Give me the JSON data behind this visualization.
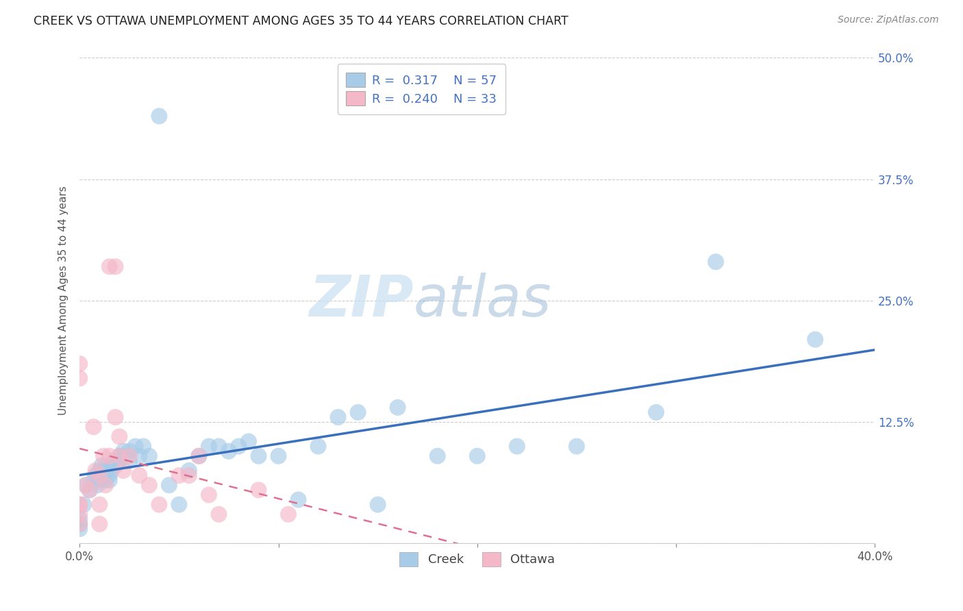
{
  "title": "CREEK VS OTTAWA UNEMPLOYMENT AMONG AGES 35 TO 44 YEARS CORRELATION CHART",
  "source": "Source: ZipAtlas.com",
  "ylabel": "Unemployment Among Ages 35 to 44 years",
  "xlim": [
    0.0,
    0.4
  ],
  "ylim": [
    0.0,
    0.5
  ],
  "xticks": [
    0.0,
    0.1,
    0.2,
    0.3,
    0.4
  ],
  "yticks": [
    0.0,
    0.125,
    0.25,
    0.375,
    0.5
  ],
  "xticklabels": [
    "0.0%",
    "",
    "",
    "",
    "40.0%"
  ],
  "yticklabels_right": [
    "",
    "12.5%",
    "25.0%",
    "37.5%",
    "50.0%"
  ],
  "creek_color": "#a8cce8",
  "ottawa_color": "#f4b8c8",
  "creek_line_color": "#3a6fbc",
  "ottawa_line_color": "#e07090",
  "background_color": "#ffffff",
  "watermark_zip": "ZIP",
  "watermark_atlas": "atlas",
  "legend_creek_R": "0.317",
  "legend_creek_N": "57",
  "legend_ottawa_R": "0.240",
  "legend_ottawa_N": "33",
  "creek_scatter_x": [
    0.0,
    0.0,
    0.0,
    0.002,
    0.003,
    0.005,
    0.007,
    0.008,
    0.009,
    0.01,
    0.01,
    0.01,
    0.011,
    0.012,
    0.013,
    0.013,
    0.014,
    0.015,
    0.015,
    0.016,
    0.017,
    0.018,
    0.02,
    0.02,
    0.021,
    0.022,
    0.025,
    0.025,
    0.028,
    0.03,
    0.032,
    0.035,
    0.04,
    0.045,
    0.05,
    0.055,
    0.06,
    0.065,
    0.07,
    0.075,
    0.08,
    0.085,
    0.09,
    0.1,
    0.11,
    0.12,
    0.13,
    0.14,
    0.15,
    0.16,
    0.18,
    0.2,
    0.22,
    0.25,
    0.29,
    0.32,
    0.37
  ],
  "creek_scatter_y": [
    0.015,
    0.02,
    0.025,
    0.04,
    0.06,
    0.055,
    0.065,
    0.07,
    0.06,
    0.065,
    0.07,
    0.075,
    0.08,
    0.07,
    0.065,
    0.075,
    0.08,
    0.07,
    0.065,
    0.075,
    0.085,
    0.08,
    0.09,
    0.085,
    0.09,
    0.095,
    0.095,
    0.085,
    0.1,
    0.09,
    0.1,
    0.09,
    0.44,
    0.06,
    0.04,
    0.075,
    0.09,
    0.1,
    0.1,
    0.095,
    0.1,
    0.105,
    0.09,
    0.09,
    0.045,
    0.1,
    0.13,
    0.135,
    0.04,
    0.14,
    0.09,
    0.09,
    0.1,
    0.1,
    0.135,
    0.29,
    0.21
  ],
  "ottawa_scatter_x": [
    0.0,
    0.0,
    0.0,
    0.0,
    0.0,
    0.0,
    0.003,
    0.005,
    0.007,
    0.008,
    0.01,
    0.01,
    0.01,
    0.012,
    0.013,
    0.015,
    0.015,
    0.018,
    0.018,
    0.02,
    0.02,
    0.022,
    0.025,
    0.03,
    0.035,
    0.04,
    0.05,
    0.055,
    0.06,
    0.065,
    0.07,
    0.09,
    0.105
  ],
  "ottawa_scatter_y": [
    0.185,
    0.17,
    0.04,
    0.03,
    0.04,
    0.02,
    0.06,
    0.055,
    0.12,
    0.075,
    0.07,
    0.04,
    0.02,
    0.09,
    0.06,
    0.09,
    0.285,
    0.285,
    0.13,
    0.09,
    0.11,
    0.075,
    0.09,
    0.07,
    0.06,
    0.04,
    0.07,
    0.07,
    0.09,
    0.05,
    0.03,
    0.055,
    0.03
  ]
}
